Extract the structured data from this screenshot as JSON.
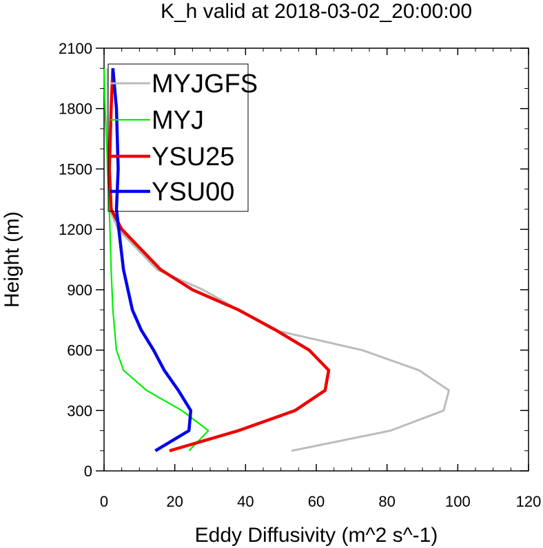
{
  "chart_data": {
    "type": "line",
    "title": "K_h valid at 2018-03-02_20:00:00",
    "xlabel": "Eddy Diffusivity (m^2 s^-1)",
    "ylabel": "Height (m)",
    "xlim": [
      0,
      120
    ],
    "ylim": [
      0,
      2100
    ],
    "x_ticks": [
      0,
      20,
      40,
      60,
      80,
      100,
      120
    ],
    "y_ticks": [
      0,
      300,
      600,
      900,
      1200,
      1500,
      1800,
      2100
    ],
    "x_tick_labels": [
      "0",
      "20",
      "40",
      "60",
      "80",
      "100",
      "120"
    ],
    "y_tick_labels": [
      "0",
      "300",
      "600",
      "900",
      "1200",
      "1500",
      "1800",
      "2100"
    ],
    "grid": false,
    "legend_position": "top-left",
    "series": [
      {
        "name": "MYJGFS",
        "color": "#bbbbbb",
        "points": [
          [
            53,
            100
          ],
          [
            81,
            200
          ],
          [
            96,
            300
          ],
          [
            97.5,
            400
          ],
          [
            89,
            500
          ],
          [
            73,
            600
          ],
          [
            48,
            700
          ],
          [
            28,
            900
          ],
          [
            15,
            1000
          ],
          [
            4,
            1200
          ],
          [
            1.5,
            1300
          ],
          [
            1,
            1500
          ],
          [
            1,
            1800
          ],
          [
            1,
            2000
          ]
        ]
      },
      {
        "name": "MYJ",
        "color": "#00ee00",
        "points": [
          [
            24,
            100
          ],
          [
            29.5,
            200
          ],
          [
            22,
            300
          ],
          [
            12,
            400
          ],
          [
            5.5,
            500
          ],
          [
            3.5,
            600
          ],
          [
            2.5,
            800
          ],
          [
            2,
            1000
          ],
          [
            1.5,
            1300
          ],
          [
            0.8,
            1600
          ],
          [
            0.3,
            1800
          ],
          [
            0,
            2000
          ]
        ]
      },
      {
        "name": "YSU25",
        "color": "#ee0000",
        "points": [
          [
            18.5,
            100
          ],
          [
            38,
            200
          ],
          [
            54,
            300
          ],
          [
            62.5,
            400
          ],
          [
            63.5,
            500
          ],
          [
            58,
            600
          ],
          [
            48.5,
            700
          ],
          [
            38,
            800
          ],
          [
            25,
            900
          ],
          [
            16,
            1000
          ],
          [
            5,
            1200
          ],
          [
            2,
            1300
          ],
          [
            1.5,
            1500
          ],
          [
            2,
            1800
          ],
          [
            2.5,
            2000
          ]
        ]
      },
      {
        "name": "YSU00",
        "color": "#0000ee",
        "points": [
          [
            14.5,
            100
          ],
          [
            24,
            200
          ],
          [
            24.5,
            300
          ],
          [
            21,
            400
          ],
          [
            17,
            500
          ],
          [
            14,
            600
          ],
          [
            10.5,
            700
          ],
          [
            8,
            800
          ],
          [
            5.5,
            1000
          ],
          [
            3.5,
            1300
          ],
          [
            4,
            1500
          ],
          [
            3.5,
            1800
          ],
          [
            2.5,
            2000
          ]
        ]
      }
    ]
  }
}
